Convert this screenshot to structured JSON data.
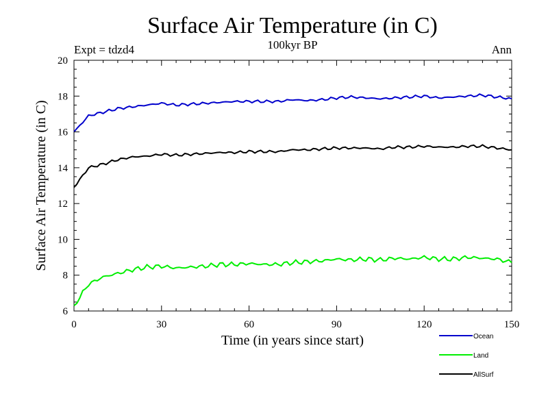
{
  "chart_data": {
    "type": "line",
    "title": "Surface Air Temperature (in C)",
    "subtitle": "100kyr BP",
    "experiment_label": "Expt = tdzd4",
    "season_label": "Ann",
    "xlabel": "Time (in years since start)",
    "ylabel": "Surface Air Temperature (in C)",
    "xlim": [
      0,
      150
    ],
    "ylim": [
      6,
      20
    ],
    "x_ticks": [
      0,
      30,
      60,
      90,
      120,
      150
    ],
    "y_ticks": [
      6,
      8,
      10,
      12,
      14,
      16,
      18,
      20
    ],
    "grid": false,
    "legend_position": "bottom-right",
    "series": [
      {
        "name": "Ocean",
        "color": "#0000cc",
        "x": [
          0,
          5,
          10,
          15,
          20,
          25,
          30,
          35,
          40,
          45,
          50,
          55,
          60,
          65,
          70,
          75,
          80,
          85,
          90,
          95,
          100,
          105,
          110,
          115,
          120,
          125,
          130,
          135,
          140,
          145,
          150
        ],
        "values": [
          16.0,
          16.9,
          17.1,
          17.3,
          17.4,
          17.5,
          17.6,
          17.5,
          17.55,
          17.6,
          17.65,
          17.7,
          17.7,
          17.7,
          17.7,
          17.8,
          17.75,
          17.8,
          17.9,
          17.95,
          17.9,
          17.85,
          17.9,
          17.95,
          18.0,
          17.9,
          17.95,
          18.0,
          18.05,
          17.95,
          17.85
        ]
      },
      {
        "name": "Land",
        "color": "#00ee00",
        "x": [
          0,
          5,
          10,
          15,
          20,
          25,
          30,
          35,
          40,
          45,
          50,
          55,
          60,
          65,
          70,
          75,
          80,
          85,
          90,
          95,
          100,
          105,
          110,
          115,
          120,
          125,
          130,
          135,
          140,
          145,
          150
        ],
        "values": [
          6.3,
          7.5,
          7.9,
          8.1,
          8.3,
          8.45,
          8.5,
          8.4,
          8.45,
          8.5,
          8.6,
          8.6,
          8.65,
          8.6,
          8.6,
          8.7,
          8.75,
          8.8,
          8.9,
          8.85,
          8.9,
          8.85,
          8.95,
          8.9,
          9.0,
          8.9,
          8.9,
          9.0,
          8.95,
          8.9,
          8.7
        ]
      },
      {
        "name": "AllSurf",
        "color": "#000000",
        "x": [
          0,
          5,
          10,
          15,
          20,
          25,
          30,
          35,
          40,
          45,
          50,
          55,
          60,
          65,
          70,
          75,
          80,
          85,
          90,
          95,
          100,
          105,
          110,
          115,
          120,
          125,
          130,
          135,
          140,
          145,
          150
        ],
        "values": [
          12.9,
          14.0,
          14.2,
          14.45,
          14.6,
          14.65,
          14.75,
          14.7,
          14.75,
          14.8,
          14.85,
          14.85,
          14.9,
          14.9,
          14.9,
          15.0,
          15.0,
          15.05,
          15.1,
          15.1,
          15.1,
          15.05,
          15.15,
          15.15,
          15.2,
          15.15,
          15.15,
          15.2,
          15.2,
          15.1,
          15.0
        ]
      }
    ]
  }
}
